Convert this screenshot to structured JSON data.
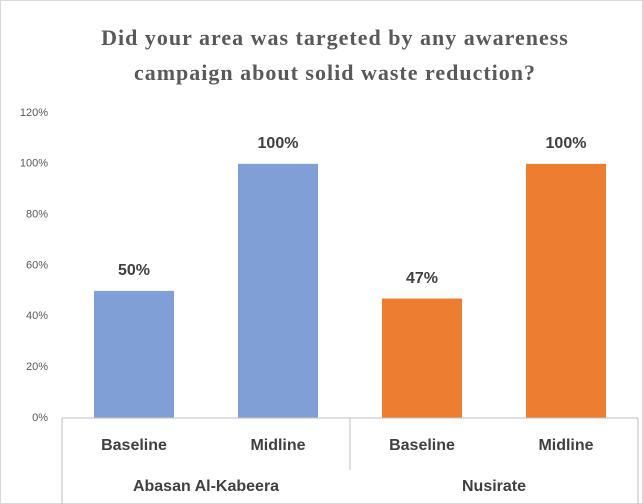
{
  "chart_data": {
    "type": "bar",
    "title": [
      "Did your area was targeted by any awareness",
      "campaign about solid waste reduction?"
    ],
    "groups": [
      {
        "name": "Abasan Al-Kabeera",
        "color": "#7f9fd6",
        "categories": [
          "Baseline",
          "Midline"
        ],
        "values": [
          50,
          100
        ],
        "value_labels": [
          "50%",
          "100%"
        ]
      },
      {
        "name": "Nusirate",
        "color": "#ed7d31",
        "categories": [
          "Baseline",
          "Midline"
        ],
        "values": [
          47,
          100
        ],
        "value_labels": [
          "47%",
          "100%"
        ]
      }
    ],
    "ylim": [
      0,
      120
    ],
    "yticks": [
      {
        "value": 0,
        "label": "0%"
      },
      {
        "value": 20,
        "label": "20%"
      },
      {
        "value": 40,
        "label": "40%"
      },
      {
        "value": 60,
        "label": "60%"
      },
      {
        "value": 80,
        "label": "80%"
      },
      {
        "value": 100,
        "label": "100%"
      },
      {
        "value": 120,
        "label": "120%"
      }
    ],
    "grid": false
  }
}
